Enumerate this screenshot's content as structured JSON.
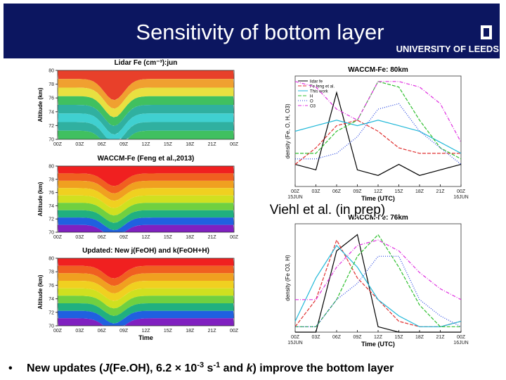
{
  "header": {
    "title": "Sensitivity of bottom layer",
    "institution": "UNIVERSITY OF LEEDS"
  },
  "left_panels": [
    {
      "title": "Lidar Fe (cm⁻³):jun",
      "ylabel": "Altitude (km)",
      "yticks": [
        80,
        78,
        76,
        74,
        72,
        70
      ],
      "xticks": [
        "00Z",
        "03Z",
        "06Z",
        "09Z",
        "12Z",
        "15Z",
        "18Z",
        "21Z",
        "00Z"
      ]
    },
    {
      "title": "WACCM-Fe (Feng et al.,2013)",
      "ylabel": "Altitude (km)",
      "yticks": [
        80,
        78,
        76,
        74,
        72,
        70
      ],
      "xticks": [
        "00Z",
        "03Z",
        "06Z",
        "09Z",
        "12Z",
        "15Z",
        "18Z",
        "21Z",
        "00Z"
      ]
    },
    {
      "title": "Updated: New j(FeOH) and k(FeOH+H)",
      "ylabel": "Altitude (km)",
      "xlabel": "Time",
      "yticks": [
        80,
        78,
        76,
        74,
        72,
        70
      ],
      "xticks": [
        "00Z",
        "03Z",
        "06Z",
        "09Z",
        "12Z",
        "15Z",
        "18Z",
        "21Z",
        "00Z"
      ]
    }
  ],
  "right_panels": [
    {
      "title": "WACCM-Fe: 80km",
      "ylabel": "density (Fe, O, H, O3)",
      "xlabel": "Time (UTC)",
      "xticks": [
        "00Z",
        "03Z",
        "06Z",
        "09Z",
        "12Z",
        "15Z",
        "18Z",
        "21Z",
        "00Z"
      ],
      "xsub": [
        "15JUN",
        "16JUN"
      ],
      "ylim": [
        0,
        1
      ],
      "series": [
        {
          "name": "lidar fe",
          "color": "#000000",
          "dash": "none",
          "values": [
            0.2,
            0.15,
            0.85,
            0.15,
            0.1,
            0.2,
            0.1,
            0.15,
            0.2
          ]
        },
        {
          "name": "Fe feng et al.",
          "color": "#e03030",
          "dash": "5 2",
          "values": [
            0.2,
            0.35,
            0.55,
            0.6,
            0.5,
            0.35,
            0.3,
            0.3,
            0.3
          ]
        },
        {
          "name": "This work",
          "color": "#20b8d8",
          "dash": "none",
          "values": [
            0.5,
            0.55,
            0.6,
            0.55,
            0.6,
            0.55,
            0.5,
            0.4,
            0.3
          ]
        },
        {
          "name": "H",
          "color": "#30c030",
          "dash": "5 2",
          "values": [
            0.3,
            0.3,
            0.5,
            0.6,
            0.95,
            0.9,
            0.6,
            0.35,
            0.25
          ]
        },
        {
          "name": "O",
          "color": "#2040e0",
          "dash": "1 2",
          "values": [
            0.25,
            0.25,
            0.3,
            0.45,
            0.7,
            0.75,
            0.5,
            0.35,
            0.2
          ]
        },
        {
          "name": "O3",
          "color": "#e030e0",
          "dash": "5 2 1 2",
          "values": [
            0.95,
            0.9,
            0.7,
            0.6,
            0.95,
            0.95,
            0.9,
            0.75,
            0.4
          ]
        }
      ]
    },
    {
      "title": "WACCM-Fe: 76km",
      "ylabel": "density (Fe O3, H)",
      "xlabel": "Time (UTC)",
      "xticks": [
        "00Z",
        "03Z",
        "06Z",
        "09Z",
        "12Z",
        "15Z",
        "18Z",
        "21Z",
        "00Z"
      ],
      "xsub": [
        "15JUN",
        "16JUN"
      ],
      "ylim": [
        0,
        1
      ],
      "series": [
        {
          "color": "#000000",
          "dash": "none",
          "values": [
            0,
            0,
            0.75,
            0.9,
            0.05,
            0,
            0,
            0,
            0
          ]
        },
        {
          "color": "#e03030",
          "dash": "5 2",
          "values": [
            0.05,
            0.3,
            0.85,
            0.5,
            0.3,
            0.1,
            0.05,
            0.05,
            0.1
          ]
        },
        {
          "color": "#20b8d8",
          "dash": "none",
          "values": [
            0.1,
            0.5,
            0.8,
            0.6,
            0.3,
            0.15,
            0.05,
            0.05,
            0.1
          ]
        },
        {
          "color": "#30c030",
          "dash": "5 2",
          "values": [
            0.05,
            0.05,
            0.3,
            0.7,
            0.9,
            0.6,
            0.25,
            0.05,
            0.05
          ]
        },
        {
          "color": "#2040e0",
          "dash": "1 2",
          "values": [
            0.05,
            0.05,
            0.3,
            0.45,
            0.7,
            0.7,
            0.3,
            0.15,
            0.05
          ]
        },
        {
          "color": "#e030e0",
          "dash": "5 2 1 2",
          "values": [
            0.3,
            0.3,
            0.6,
            0.8,
            0.85,
            0.75,
            0.55,
            0.4,
            0.3
          ]
        }
      ]
    }
  ],
  "caption": "Viehl et al. (in prep)",
  "bullet": [
    "New updates (",
    "J",
    "(Fe.OH), 6.2 × 10",
    "-3",
    " s",
    "-1",
    " and ",
    "k",
    ")  improve the bottom layer"
  ]
}
